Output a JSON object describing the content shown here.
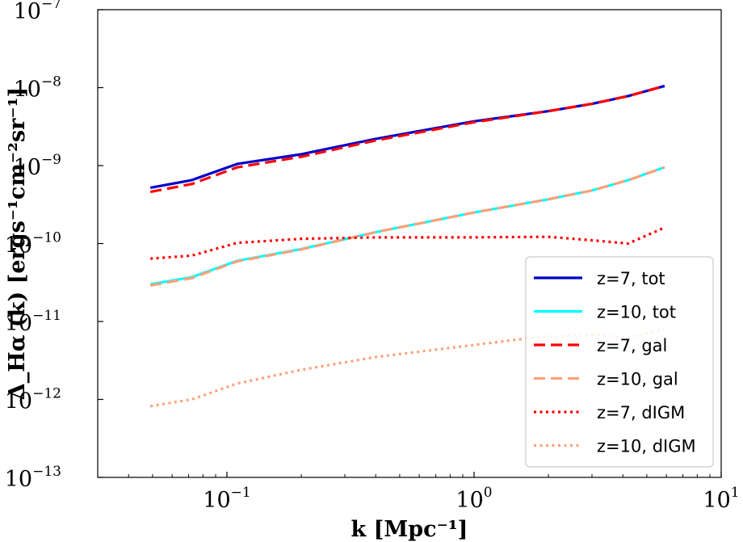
{
  "chart_data": {
    "type": "line",
    "xscale": "log",
    "yscale": "log",
    "xlim": [
      0.03,
      10
    ],
    "ylim": [
      1e-13,
      1e-07
    ],
    "xlabel": "k [Mpc⁻¹]",
    "ylabel": "Δ_Hα (k) [ergs⁻¹cm⁻²sr⁻¹]",
    "x_ticks": [
      {
        "value": 0.1,
        "base": "10",
        "exp": "−1"
      },
      {
        "value": 1,
        "base": "10",
        "exp": "0"
      },
      {
        "value": 10,
        "base": "10",
        "exp": "1"
      }
    ],
    "y_ticks": [
      {
        "value": 1e-13,
        "base": "10",
        "exp": "−13"
      },
      {
        "value": 1e-12,
        "base": "10",
        "exp": "−12"
      },
      {
        "value": 1e-11,
        "base": "10",
        "exp": "−11"
      },
      {
        "value": 1e-10,
        "base": "10",
        "exp": "−10"
      },
      {
        "value": 1e-09,
        "base": "10",
        "exp": "−9"
      },
      {
        "value": 1e-08,
        "base": "10",
        "exp": "−8"
      },
      {
        "value": 1e-07,
        "base": "10",
        "exp": "−7"
      }
    ],
    "legend_position": "lower-right",
    "series": [
      {
        "name": "z=7, tot",
        "color": "#0000cc",
        "style": "solid",
        "points": [
          [
            0.049,
            5.2e-10
          ],
          [
            0.072,
            6.5e-10
          ],
          [
            0.11,
            1.05e-09
          ],
          [
            0.2,
            1.4e-09
          ],
          [
            0.4,
            2.2e-09
          ],
          [
            1.0,
            3.7e-09
          ],
          [
            2.0,
            5e-09
          ],
          [
            3.0,
            6.2e-09
          ],
          [
            4.2,
            7.8e-09
          ],
          [
            5.9,
            1.05e-08
          ]
        ]
      },
      {
        "name": "z=10, tot",
        "color": "#00ffff",
        "style": "solid",
        "points": [
          [
            0.049,
            3e-11
          ],
          [
            0.072,
            3.7e-11
          ],
          [
            0.11,
            6e-11
          ],
          [
            0.2,
            8.5e-11
          ],
          [
            0.4,
            1.4e-10
          ],
          [
            1.0,
            2.5e-10
          ],
          [
            2.0,
            3.7e-10
          ],
          [
            3.0,
            4.8e-10
          ],
          [
            4.2,
            6.5e-10
          ],
          [
            5.9,
            9.5e-10
          ]
        ]
      },
      {
        "name": "z=7, gal",
        "color": "#ff0000",
        "style": "dashed",
        "points": [
          [
            0.049,
            4.6e-10
          ],
          [
            0.072,
            5.8e-10
          ],
          [
            0.11,
            9.5e-10
          ],
          [
            0.2,
            1.3e-09
          ],
          [
            0.4,
            2.1e-09
          ],
          [
            1.0,
            3.6e-09
          ],
          [
            2.0,
            5e-09
          ],
          [
            3.0,
            6.2e-09
          ],
          [
            4.2,
            7.8e-09
          ],
          [
            5.9,
            1.05e-08
          ]
        ]
      },
      {
        "name": "z=10, gal",
        "color": "#ffa07a",
        "style": "dashed",
        "points": [
          [
            0.049,
            2.9e-11
          ],
          [
            0.072,
            3.6e-11
          ],
          [
            0.11,
            5.9e-11
          ],
          [
            0.2,
            8.4e-11
          ],
          [
            0.4,
            1.4e-10
          ],
          [
            1.0,
            2.5e-10
          ],
          [
            2.0,
            3.7e-10
          ],
          [
            3.0,
            4.8e-10
          ],
          [
            4.2,
            6.5e-10
          ],
          [
            5.9,
            9.5e-10
          ]
        ]
      },
      {
        "name": "z=7, dIGM",
        "color": "#ff0000",
        "style": "dotted",
        "points": [
          [
            0.049,
            6.4e-11
          ],
          [
            0.072,
            7e-11
          ],
          [
            0.11,
            1.02e-10
          ],
          [
            0.2,
            1.15e-10
          ],
          [
            0.4,
            1.2e-10
          ],
          [
            1.0,
            1.2e-10
          ],
          [
            2.0,
            1.22e-10
          ],
          [
            3.0,
            1.1e-10
          ],
          [
            4.2,
            1e-10
          ],
          [
            5.9,
            1.6e-10
          ]
        ]
      },
      {
        "name": "z=10, dIGM",
        "color": "#ffa07a",
        "style": "dotted",
        "points": [
          [
            0.049,
            8.2e-13
          ],
          [
            0.072,
            1e-12
          ],
          [
            0.11,
            1.6e-12
          ],
          [
            0.2,
            2.4e-12
          ],
          [
            0.4,
            3.5e-12
          ],
          [
            1.0,
            5e-12
          ],
          [
            1.8,
            6.3e-12
          ],
          [
            3.0,
            6.8e-12
          ],
          [
            4.2,
            6.2e-12
          ],
          [
            5.9,
            8e-12
          ]
        ]
      }
    ]
  }
}
